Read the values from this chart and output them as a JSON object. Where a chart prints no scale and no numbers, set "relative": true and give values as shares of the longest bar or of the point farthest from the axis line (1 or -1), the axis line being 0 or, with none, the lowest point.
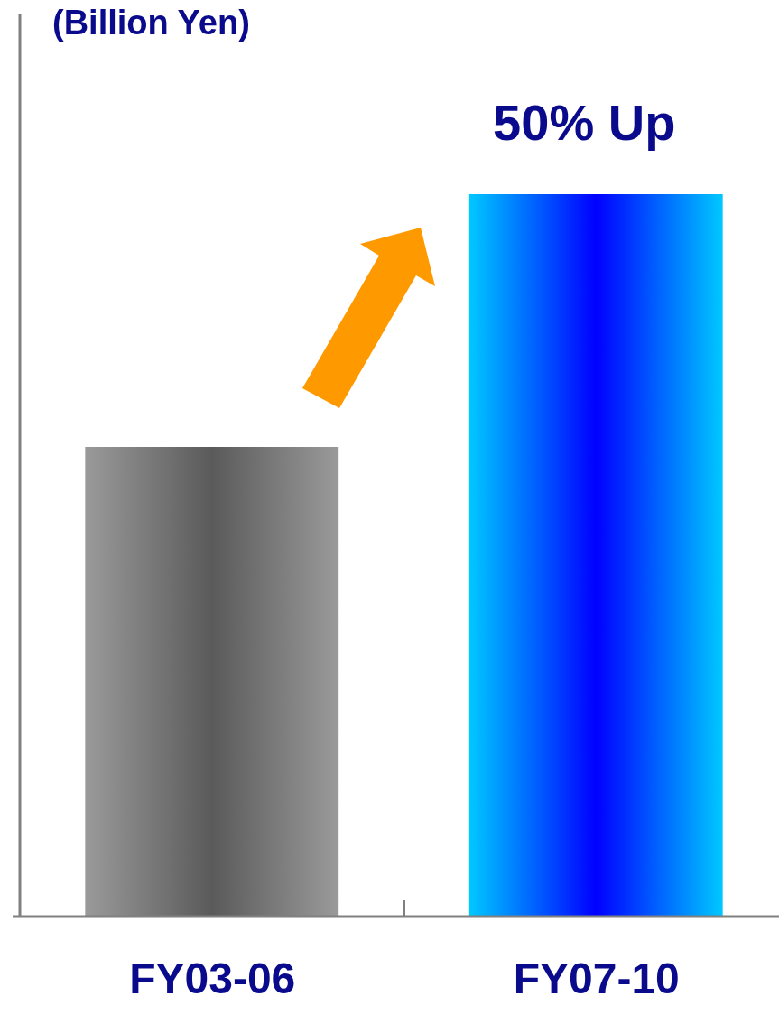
{
  "chart_data": {
    "type": "bar",
    "ylabel": "(Billion Yen)",
    "relative": true,
    "categories": [
      "FY03-06",
      "FY07-10"
    ],
    "values": [
      0.65,
      1
    ],
    "colors": [
      "#5a5a5a",
      "#0000ff"
    ],
    "annotations": [
      {
        "text": "50% Up",
        "x": "FY07-10",
        "y": 1
      }
    ]
  }
}
